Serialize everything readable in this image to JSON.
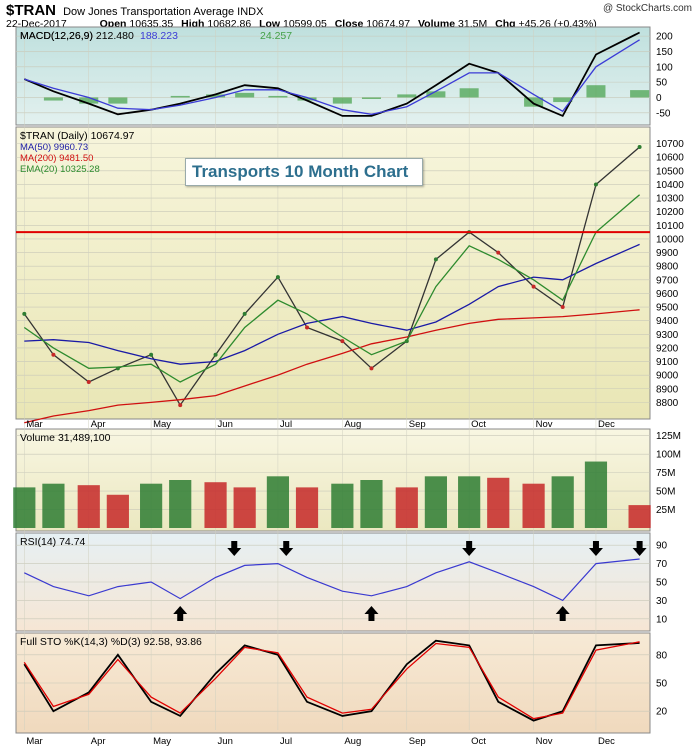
{
  "header": {
    "symbol": "$TRAN",
    "name": "Dow Jones Transportation Average INDX",
    "watermark": "@ StockCharts.com",
    "date": "22-Dec-2017",
    "open_label": "Open",
    "open": "10635.35",
    "high_label": "High",
    "high": "10682.86",
    "low_label": "Low",
    "low": "10599.05",
    "close_label": "Close",
    "close": "10674.97",
    "volume_label": "Volume",
    "volume": "31.5M",
    "chg_label": "Chg",
    "chg": "+45.26 (+0.43%)"
  },
  "colors": {
    "price_up": "#2e7d32",
    "price_down": "#c62828",
    "ma50": "#1a1aa6",
    "ma200": "#d01010",
    "ema20": "#2e8b2e",
    "macd": "#000000",
    "signal": "#3b3bd6",
    "hist": "#43a047",
    "resistance": "#e00000",
    "rsi": "#3a3ad0",
    "sto_k": "#000000",
    "sto_d": "#e00000"
  },
  "chart_data": [
    {
      "panel": "macd",
      "type": "line",
      "title": "MACD(12,26,9)",
      "legend": [
        "MACD(12,26,9) 212.480",
        "188.223",
        "24.257"
      ],
      "ylim": [
        -80,
        220
      ],
      "yticks": [
        200,
        150,
        100,
        50,
        0,
        -50
      ],
      "x": [
        "2017-03-01",
        "2017-03-15",
        "2017-04-01",
        "2017-04-15",
        "2017-05-01",
        "2017-05-15",
        "2017-06-01",
        "2017-06-15",
        "2017-07-01",
        "2017-07-15",
        "2017-08-01",
        "2017-08-15",
        "2017-09-01",
        "2017-09-15",
        "2017-10-01",
        "2017-10-15",
        "2017-11-01",
        "2017-11-15",
        "2017-12-01",
        "2017-12-22"
      ],
      "series": [
        {
          "name": "MACD",
          "values": [
            60,
            20,
            -20,
            -55,
            -40,
            -20,
            10,
            40,
            30,
            -10,
            -60,
            -60,
            -20,
            40,
            110,
            80,
            -20,
            -60,
            140,
            212
          ]
        },
        {
          "name": "Signal",
          "values": [
            60,
            30,
            0,
            -35,
            -40,
            -25,
            0,
            25,
            25,
            0,
            -40,
            -55,
            -30,
            20,
            80,
            80,
            10,
            -45,
            100,
            188
          ]
        },
        {
          "name": "Histogram",
          "values": [
            0,
            -10,
            -20,
            -20,
            0,
            5,
            10,
            15,
            5,
            -10,
            -20,
            -5,
            10,
            20,
            30,
            0,
            -30,
            -15,
            40,
            24
          ]
        }
      ]
    },
    {
      "panel": "price",
      "type": "line",
      "title": "$TRAN (Daily) 10674.97",
      "legend": [
        "MA(50) 9960.73",
        "MA(200) 9481.50",
        "EMA(20) 10325.28"
      ],
      "annotation": "Transports 10 Month Chart",
      "resistance": 10050,
      "ylim": [
        8700,
        10800
      ],
      "yticks": [
        10700,
        10600,
        10500,
        10400,
        10300,
        10200,
        10100,
        10000,
        9900,
        9800,
        9700,
        9600,
        9500,
        9400,
        9300,
        9200,
        9100,
        9000,
        8900,
        8800
      ],
      "x": [
        "2017-03-01",
        "2017-03-15",
        "2017-04-01",
        "2017-04-15",
        "2017-05-01",
        "2017-05-15",
        "2017-06-01",
        "2017-06-15",
        "2017-07-01",
        "2017-07-15",
        "2017-08-01",
        "2017-08-15",
        "2017-09-01",
        "2017-09-15",
        "2017-10-01",
        "2017-10-15",
        "2017-11-01",
        "2017-11-15",
        "2017-12-01",
        "2017-12-22"
      ],
      "series": [
        {
          "name": "$TRAN",
          "values": [
            9450,
            9150,
            8950,
            9050,
            9150,
            8780,
            9150,
            9450,
            9720,
            9350,
            9250,
            9050,
            9250,
            9850,
            10050,
            9900,
            9650,
            9500,
            10400,
            10675
          ]
        },
        {
          "name": "MA(50)",
          "values": [
            9250,
            9260,
            9240,
            9180,
            9120,
            9080,
            9100,
            9180,
            9300,
            9380,
            9430,
            9380,
            9330,
            9390,
            9520,
            9650,
            9720,
            9700,
            9820,
            9960
          ]
        },
        {
          "name": "MA(200)",
          "values": [
            8650,
            8700,
            8740,
            8780,
            8800,
            8820,
            8850,
            8920,
            9000,
            9080,
            9160,
            9230,
            9280,
            9330,
            9380,
            9410,
            9420,
            9430,
            9450,
            9480
          ]
        },
        {
          "name": "EMA(20)",
          "values": [
            9350,
            9200,
            9050,
            9060,
            9080,
            8950,
            9080,
            9350,
            9550,
            9450,
            9280,
            9150,
            9250,
            9650,
            9950,
            9850,
            9700,
            9550,
            10050,
            10325
          ]
        }
      ]
    },
    {
      "panel": "volume",
      "type": "bar",
      "title": "Volume 31,489,100",
      "ylim": [
        0,
        130
      ],
      "yticks": [
        "125M",
        "100M",
        "75M",
        "50M",
        "25M"
      ],
      "x": [
        "2017-03-01",
        "2017-03-15",
        "2017-04-01",
        "2017-04-15",
        "2017-05-01",
        "2017-05-15",
        "2017-06-01",
        "2017-06-15",
        "2017-07-01",
        "2017-07-15",
        "2017-08-01",
        "2017-08-15",
        "2017-09-01",
        "2017-09-15",
        "2017-10-01",
        "2017-10-15",
        "2017-11-01",
        "2017-11-15",
        "2017-12-01",
        "2017-12-22"
      ],
      "values": [
        55,
        60,
        58,
        45,
        60,
        65,
        62,
        55,
        70,
        55,
        60,
        65,
        55,
        70,
        70,
        68,
        60,
        70,
        90,
        31
      ]
    },
    {
      "panel": "rsi",
      "type": "line",
      "title": "RSI(14) 74.74",
      "ylim": [
        0,
        100
      ],
      "yticks": [
        90,
        70,
        50,
        30,
        10
      ],
      "x": [
        "2017-03-01",
        "2017-03-15",
        "2017-04-01",
        "2017-04-15",
        "2017-05-01",
        "2017-05-15",
        "2017-06-01",
        "2017-06-15",
        "2017-07-01",
        "2017-07-15",
        "2017-08-01",
        "2017-08-15",
        "2017-09-01",
        "2017-09-15",
        "2017-10-01",
        "2017-10-15",
        "2017-11-01",
        "2017-11-15",
        "2017-12-01",
        "2017-12-22"
      ],
      "values": [
        60,
        45,
        35,
        45,
        50,
        32,
        55,
        68,
        70,
        55,
        40,
        35,
        45,
        60,
        72,
        60,
        45,
        30,
        70,
        75
      ],
      "markers": {
        "up": [
          "2017-05-15",
          "2017-08-15",
          "2017-11-15"
        ],
        "down": [
          "2017-06-10",
          "2017-07-05",
          "2017-10-01",
          "2017-12-01",
          "2017-12-22"
        ]
      }
    },
    {
      "panel": "stochastics",
      "type": "line",
      "title": "Full STO %K(14,3) %D(3) 92.58, 93.86",
      "ylim": [
        0,
        100
      ],
      "yticks": [
        80,
        50,
        20
      ],
      "x": [
        "2017-03-01",
        "2017-03-15",
        "2017-04-01",
        "2017-04-15",
        "2017-05-01",
        "2017-05-15",
        "2017-06-01",
        "2017-06-15",
        "2017-07-01",
        "2017-07-15",
        "2017-08-01",
        "2017-08-15",
        "2017-09-01",
        "2017-09-15",
        "2017-10-01",
        "2017-10-15",
        "2017-11-01",
        "2017-11-15",
        "2017-12-01",
        "2017-12-22"
      ],
      "series": [
        {
          "name": "%K",
          "values": [
            70,
            20,
            40,
            80,
            30,
            15,
            60,
            90,
            80,
            30,
            15,
            20,
            70,
            95,
            90,
            30,
            10,
            20,
            90,
            92.58
          ]
        },
        {
          "name": "%D",
          "values": [
            72,
            25,
            38,
            75,
            35,
            18,
            55,
            88,
            82,
            35,
            18,
            22,
            65,
            92,
            88,
            35,
            12,
            18,
            85,
            93.86
          ]
        }
      ]
    }
  ],
  "x_axis": {
    "month_labels": [
      "Mar",
      "Apr",
      "May",
      "Jun",
      "Jul",
      "Aug",
      "Sep",
      "Oct",
      "Nov",
      "Dec"
    ]
  }
}
